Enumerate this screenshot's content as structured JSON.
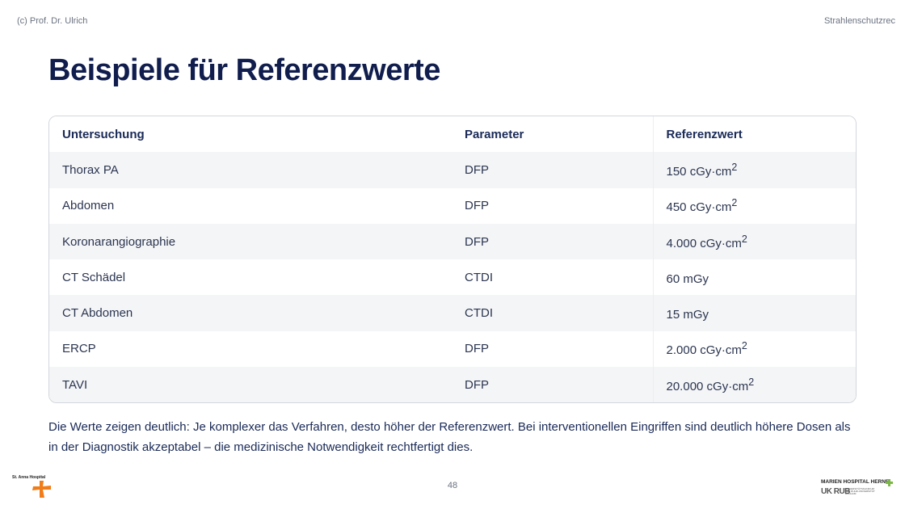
{
  "header": {
    "left": "(c) Prof. Dr. Ulrich",
    "right": "Strahlenschutzrec"
  },
  "title": "Beispiele für Referenzwerte",
  "table": {
    "headers": [
      "Untersuchung",
      "Parameter",
      "Referenzwert"
    ],
    "rows": [
      {
        "exam": "Thorax PA",
        "param": "DFP",
        "value": "150 cGy·cm",
        "sup": "2"
      },
      {
        "exam": "Abdomen",
        "param": "DFP",
        "value": "450 cGy·cm",
        "sup": "2"
      },
      {
        "exam": "Koronarangiographie",
        "param": "DFP",
        "value": "4.000 cGy·cm",
        "sup": "2"
      },
      {
        "exam": "CT Schädel",
        "param": "CTDI",
        "value": "60 mGy",
        "sup": ""
      },
      {
        "exam": "CT Abdomen",
        "param": "CTDI",
        "value": "15 mGy",
        "sup": ""
      },
      {
        "exam": "ERCP",
        "param": "DFP",
        "value": "2.000 cGy·cm",
        "sup": "2"
      },
      {
        "exam": "TAVI",
        "param": "DFP",
        "value": "20.000 cGy·cm",
        "sup": "2"
      }
    ]
  },
  "note": "Die Werte zeigen deutlich: Je komplexer das Verfahren, desto höher der Referenzwert. Bei interventionellen Eingriffen sind deutlich höhere Dosen als in der Diagnostik akzeptabel – die medizinische Notwendigkeit rechtfertigt dies.",
  "page_number": "48",
  "logos": {
    "left": {
      "text": "St. Anna Hospital",
      "accent": "#f07d1a"
    },
    "right": {
      "line1": "MARIEN HOSPITAL HERNE",
      "line2": "UK RUB",
      "line3": "UNIVERSITÄTSKLINIKUM DER RUHR-UNIVERSITÄT BOCHUM",
      "accent": "#7ab648"
    }
  }
}
